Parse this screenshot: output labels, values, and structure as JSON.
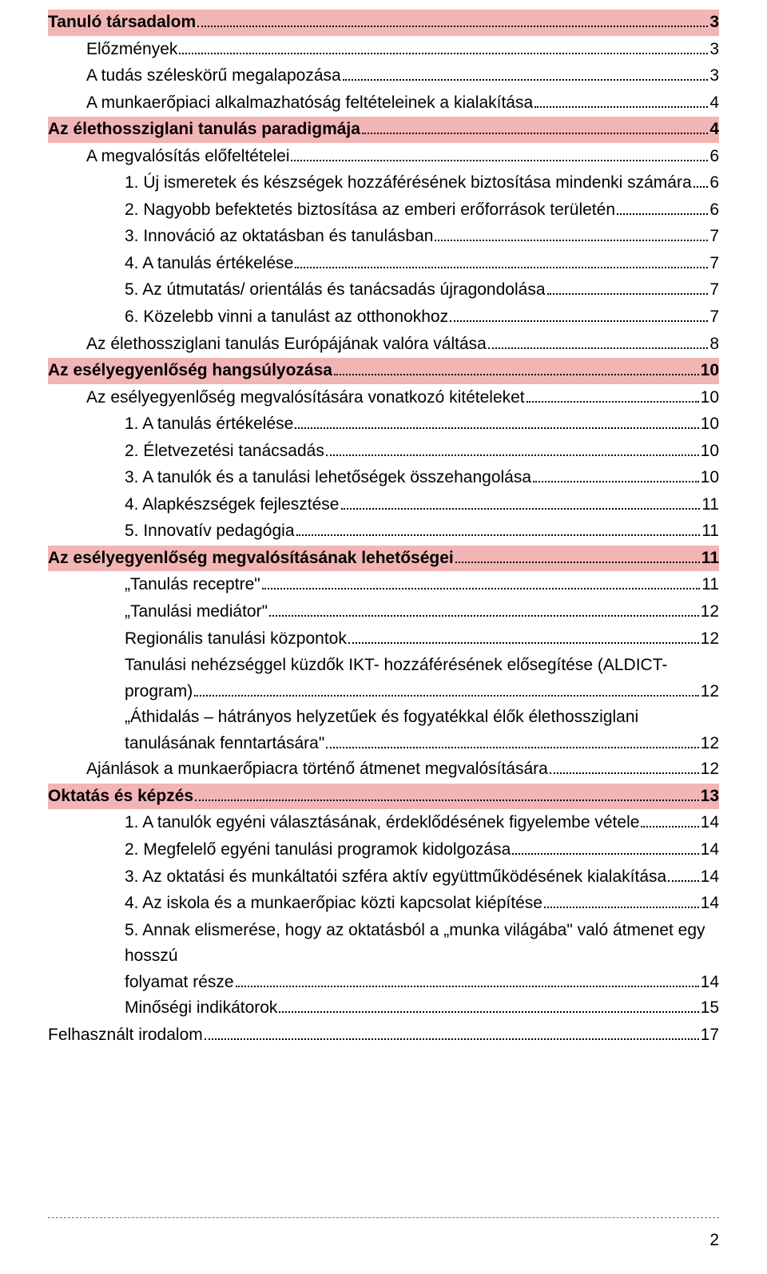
{
  "colors": {
    "highlight": "#f2b5b5",
    "text": "#000000",
    "background": "#ffffff",
    "dashed_rule": "#777777"
  },
  "typography": {
    "font_family": "Arial",
    "base_font_size_pt": 16,
    "line_height": 1.55,
    "bold_weight": 700
  },
  "page_number": "2",
  "toc": [
    {
      "text": "Tanuló társadalom",
      "page": "3",
      "indent": 0,
      "bold": true,
      "highlight": true
    },
    {
      "text": "Előzmények",
      "page": "3",
      "indent": 1,
      "bold": false,
      "highlight": false
    },
    {
      "text": "A tudás széleskörű megalapozása",
      "page": "3",
      "indent": 1,
      "bold": false,
      "highlight": false
    },
    {
      "text": "A munkaerőpiaci alkalmazhatóság feltételeinek a kialakítása",
      "page": "4",
      "indent": 1,
      "bold": false,
      "highlight": false
    },
    {
      "text": "Az élethossziglani tanulás paradigmája",
      "page": "4",
      "indent": 0,
      "bold": true,
      "highlight": true
    },
    {
      "text": "A megvalósítás előfeltételei",
      "page": "6",
      "indent": 1,
      "bold": false,
      "highlight": false
    },
    {
      "text": "1. Új ismeretek és készségek hozzáférésének biztosítása mindenki számára",
      "page": "6",
      "indent": 2,
      "bold": false,
      "highlight": false
    },
    {
      "text": "2. Nagyobb befektetés biztosítása az emberi erőforrások területén",
      "page": "6",
      "indent": 2,
      "bold": false,
      "highlight": false
    },
    {
      "text": "3. Innováció az oktatásban és tanulásban",
      "page": "7",
      "indent": 2,
      "bold": false,
      "highlight": false
    },
    {
      "text": "4. A tanulás értékelése",
      "page": "7",
      "indent": 2,
      "bold": false,
      "highlight": false
    },
    {
      "text": "5. Az útmutatás/ orientálás és tanácsadás újragondolása",
      "page": "7",
      "indent": 2,
      "bold": false,
      "highlight": false
    },
    {
      "text": "6. Közelebb vinni a tanulást az otthonokhoz",
      "page": "7",
      "indent": 2,
      "bold": false,
      "highlight": false
    },
    {
      "text": "Az élethossziglani tanulás Európájának valóra váltása",
      "page": "8",
      "indent": 1,
      "bold": false,
      "highlight": false
    },
    {
      "text": "Az esélyegyenlőség hangsúlyozása",
      "page": "10",
      "indent": 0,
      "bold": true,
      "highlight": true
    },
    {
      "text": "Az esélyegyenlőség megvalósítására vonatkozó kitételeket",
      "page": "10",
      "indent": 1,
      "bold": false,
      "highlight": false
    },
    {
      "text": "1. A tanulás értékelése",
      "page": "10",
      "indent": 2,
      "bold": false,
      "highlight": false
    },
    {
      "text": "2. Életvezetési tanácsadás",
      "page": "10",
      "indent": 2,
      "bold": false,
      "highlight": false
    },
    {
      "text": "3. A tanulók és a tanulási lehetőségek összehangolása",
      "page": "10",
      "indent": 2,
      "bold": false,
      "highlight": false
    },
    {
      "text": "4. Alapkészségek fejlesztése",
      "page": "11",
      "indent": 2,
      "bold": false,
      "highlight": false
    },
    {
      "text": "5. Innovatív pedagógia",
      "page": "11",
      "indent": 2,
      "bold": false,
      "highlight": false
    },
    {
      "text": "Az esélyegyenlőség megvalósításának lehetőségei",
      "page": "11",
      "indent": 0,
      "bold": true,
      "highlight": true
    },
    {
      "text": "„Tanulás receptre\"",
      "page": "11",
      "indent": 2,
      "bold": false,
      "highlight": false
    },
    {
      "text": "„Tanulási mediátor\"",
      "page": "12",
      "indent": 2,
      "bold": false,
      "highlight": false
    },
    {
      "text": "Regionális tanulási központok",
      "page": "12",
      "indent": 2,
      "bold": false,
      "highlight": false
    },
    {
      "type": "justify",
      "pre_text": "Tanulási nehézséggel küzdők IKT- hozzáférésének elősegítése (ALDICT-",
      "last_text": "program)",
      "page": "12",
      "indent": 2
    },
    {
      "type": "justify",
      "pre_text": "„Áthidalás – hátrányos helyzetűek és fogyatékkal élők élethossziglani",
      "last_text": "tanulásának fenntartására\"",
      "page": "12",
      "indent": 2
    },
    {
      "text": "Ajánlások a munkaerőpiacra történő átmenet megvalósítására",
      "page": "12",
      "indent": 1,
      "bold": false,
      "highlight": false
    },
    {
      "text": "Oktatás és képzés",
      "page": "13",
      "indent": 0,
      "bold": true,
      "highlight": true
    },
    {
      "text": "1. A tanulók egyéni választásának, érdeklődésének figyelembe vétele",
      "page": "14",
      "indent": 2,
      "bold": false,
      "highlight": false
    },
    {
      "text": "2. Megfelelő egyéni tanulási programok kidolgozása",
      "page": "14",
      "indent": 2,
      "bold": false,
      "highlight": false
    },
    {
      "text": "3. Az oktatási és munkáltatói szféra aktív együttműködésének kialakítása",
      "page": "14",
      "indent": 2,
      "bold": false,
      "highlight": false
    },
    {
      "text": "4. Az iskola és a munkaerőpiac közti kapcsolat kiépítése",
      "page": "14",
      "indent": 2,
      "bold": false,
      "highlight": false
    },
    {
      "type": "wrap",
      "pre_text": "5. Annak elismerése, hogy az oktatásból a „munka világába\" való átmenet egy hosszú",
      "last_text": "folyamat része",
      "page": "14",
      "indent": 2
    },
    {
      "text": "Minőségi indikátorok",
      "page": "15",
      "indent": 2,
      "bold": false,
      "highlight": false
    },
    {
      "text": "Felhasznált irodalom",
      "page": "17",
      "indent": 0,
      "bold": false,
      "highlight": false
    }
  ]
}
